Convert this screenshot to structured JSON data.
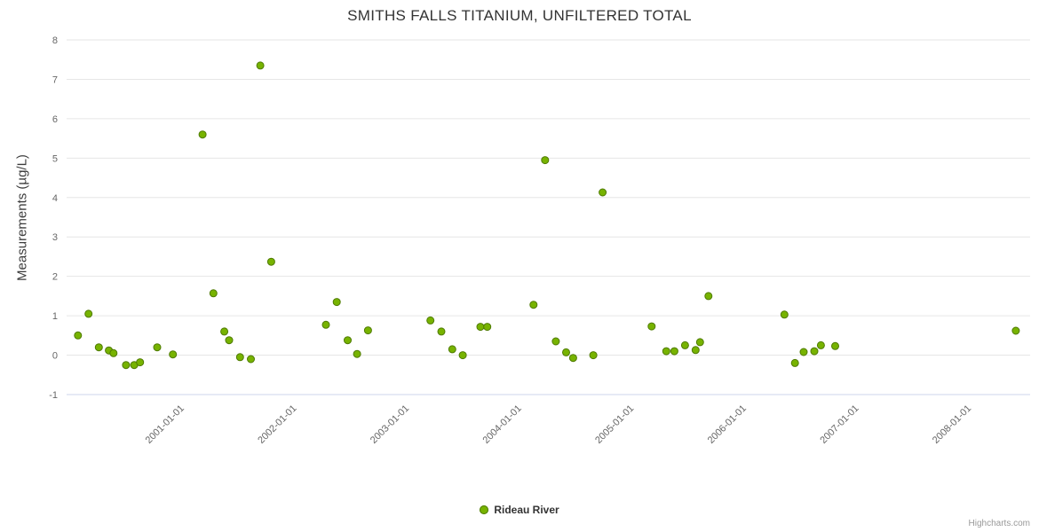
{
  "chart_data": {
    "type": "scatter",
    "title": "SMITHS FALLS TITANIUM, UNFILTERED TOTAL",
    "xlabel": "",
    "ylabel": "Measurements (µg/L)",
    "ylim": [
      -1,
      8
    ],
    "yticks": [
      -1,
      0,
      1,
      2,
      3,
      4,
      5,
      6,
      7,
      8
    ],
    "xticks": [
      "2001-01-01",
      "2002-01-01",
      "2003-01-01",
      "2004-01-01",
      "2005-01-01",
      "2006-01-01",
      "2007-01-01",
      "2008-01-01"
    ],
    "x_range": [
      "1999-12-25",
      "2008-07-20"
    ],
    "grid": "horizontal",
    "gridline_color": "#e6e6e6",
    "axis_line_color": "#ccd6eb",
    "axis_label_color": "#666666",
    "legend_position": "bottom-center",
    "series": [
      {
        "name": "Rideau River",
        "color": "#77b300",
        "border_color": "#4e7a00",
        "points": [
          {
            "date": "2000-02-01",
            "value": 0.5
          },
          {
            "date": "2000-03-05",
            "value": 1.05
          },
          {
            "date": "2000-04-08",
            "value": 0.2
          },
          {
            "date": "2000-05-10",
            "value": 0.12
          },
          {
            "date": "2000-05-25",
            "value": 0.05
          },
          {
            "date": "2000-07-05",
            "value": -0.25
          },
          {
            "date": "2000-08-01",
            "value": -0.25
          },
          {
            "date": "2000-08-20",
            "value": -0.18
          },
          {
            "date": "2000-10-15",
            "value": 0.2
          },
          {
            "date": "2000-12-05",
            "value": 0.02
          },
          {
            "date": "2001-03-10",
            "value": 5.6
          },
          {
            "date": "2001-04-15",
            "value": 1.57
          },
          {
            "date": "2001-05-20",
            "value": 0.6
          },
          {
            "date": "2001-06-05",
            "value": 0.38
          },
          {
            "date": "2001-07-10",
            "value": -0.05
          },
          {
            "date": "2001-08-15",
            "value": -0.1
          },
          {
            "date": "2001-09-15",
            "value": 7.35
          },
          {
            "date": "2001-10-20",
            "value": 2.37
          },
          {
            "date": "2002-04-15",
            "value": 0.77
          },
          {
            "date": "2002-05-20",
            "value": 1.35
          },
          {
            "date": "2002-06-25",
            "value": 0.38
          },
          {
            "date": "2002-07-25",
            "value": 0.03
          },
          {
            "date": "2002-08-30",
            "value": 0.63
          },
          {
            "date": "2003-03-20",
            "value": 0.88
          },
          {
            "date": "2003-04-25",
            "value": 0.6
          },
          {
            "date": "2003-05-30",
            "value": 0.15
          },
          {
            "date": "2003-07-03",
            "value": 0.0
          },
          {
            "date": "2003-08-30",
            "value": 0.72
          },
          {
            "date": "2003-09-22",
            "value": 0.72
          },
          {
            "date": "2004-02-20",
            "value": 1.28
          },
          {
            "date": "2004-03-27",
            "value": 4.95
          },
          {
            "date": "2004-05-01",
            "value": 0.35
          },
          {
            "date": "2004-06-04",
            "value": 0.07
          },
          {
            "date": "2004-06-27",
            "value": -0.07
          },
          {
            "date": "2004-09-01",
            "value": 0.0
          },
          {
            "date": "2004-10-01",
            "value": 4.13
          },
          {
            "date": "2005-03-08",
            "value": 0.73
          },
          {
            "date": "2005-04-25",
            "value": 0.1
          },
          {
            "date": "2005-05-21",
            "value": 0.1
          },
          {
            "date": "2005-06-25",
            "value": 0.25
          },
          {
            "date": "2005-07-29",
            "value": 0.13
          },
          {
            "date": "2005-08-13",
            "value": 0.33
          },
          {
            "date": "2005-09-10",
            "value": 1.5
          },
          {
            "date": "2006-05-13",
            "value": 1.03
          },
          {
            "date": "2006-06-17",
            "value": -0.2
          },
          {
            "date": "2006-07-15",
            "value": 0.08
          },
          {
            "date": "2006-08-19",
            "value": 0.1
          },
          {
            "date": "2006-09-10",
            "value": 0.25
          },
          {
            "date": "2006-10-26",
            "value": 0.23
          },
          {
            "date": "2008-06-04",
            "value": 0.62
          }
        ]
      }
    ]
  },
  "credits": "Highcharts.com"
}
